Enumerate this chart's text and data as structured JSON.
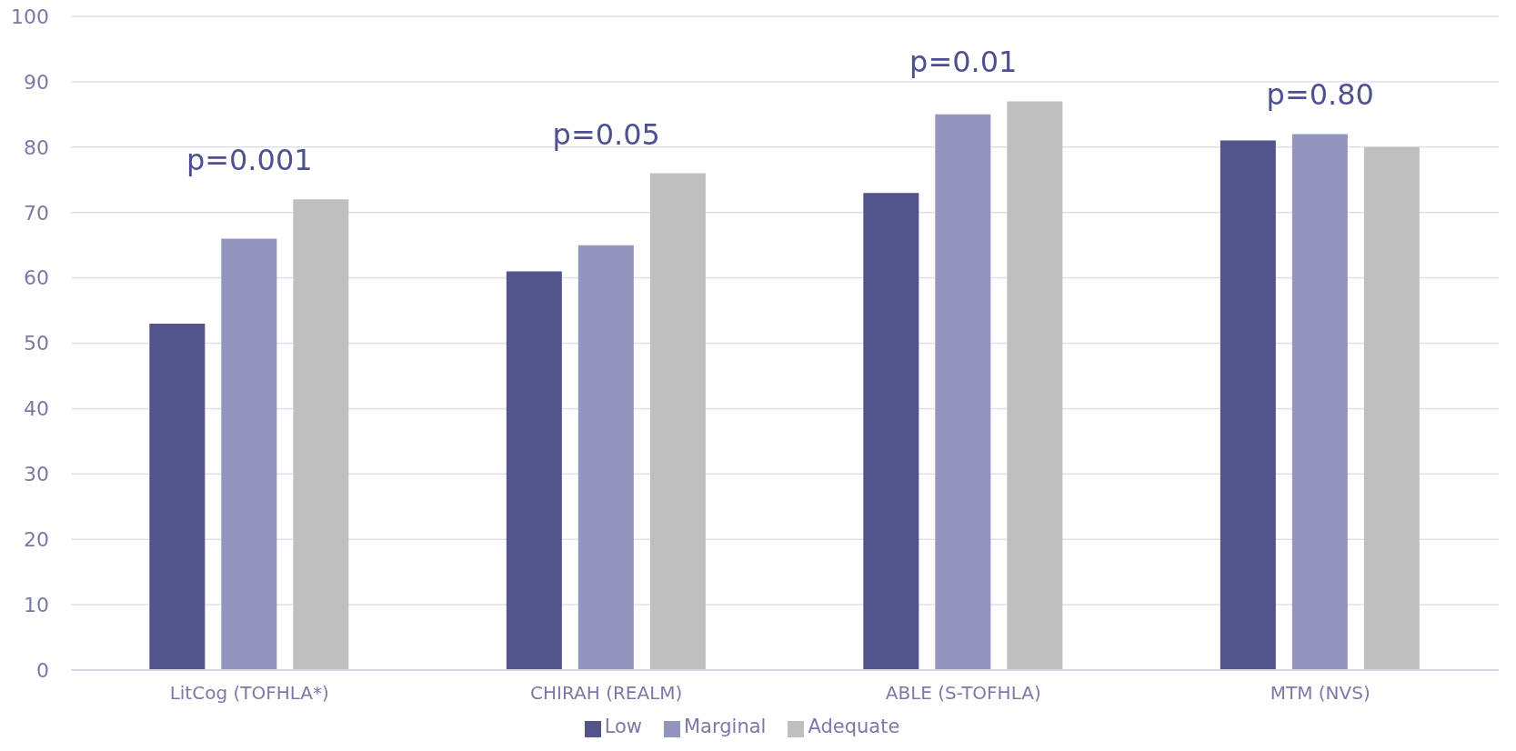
{
  "chart_data": {
    "type": "bar",
    "categories": [
      "LitCog (TOFHLA*)",
      "CHIRAH (REALM)",
      "ABLE (S-TOFHLA)",
      "MTM (NVS)"
    ],
    "series": [
      {
        "name": "Low",
        "color": "#52548a",
        "values": [
          53,
          61,
          73,
          81
        ]
      },
      {
        "name": "Marginal",
        "color": "#9395bf",
        "values": [
          66,
          65,
          85,
          82
        ]
      },
      {
        "name": "Adequate",
        "color": "#bfbfbf",
        "values": [
          72,
          76,
          87,
          80
        ]
      }
    ],
    "ylim": [
      0,
      100
    ],
    "yticks": [
      0,
      10,
      20,
      30,
      40,
      50,
      60,
      70,
      80,
      90,
      100
    ],
    "grid": "y",
    "legend": "bottom",
    "annotations": [
      "p=0.001",
      "p=0.05",
      "p=0.01",
      "p=0.80"
    ]
  }
}
